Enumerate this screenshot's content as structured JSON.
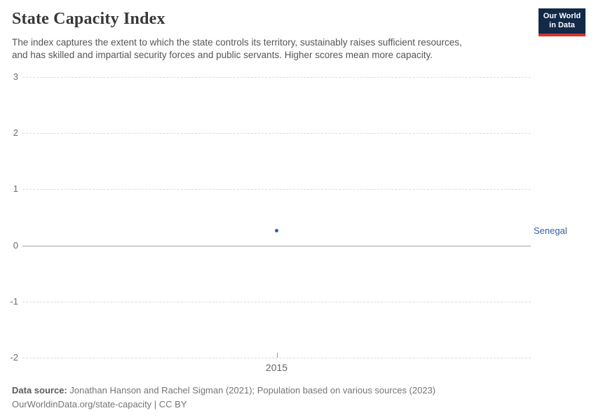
{
  "header": {
    "title": "State Capacity Index",
    "subtitle_line1": "The index captures the extent to which the state controls its territory, sustainably raises sufficient resources,",
    "subtitle_line2": "and has skilled and impartial security forces and public servants. Higher scores mean more capacity.",
    "logo": {
      "line1": "Our World",
      "line2": "in Data",
      "bg_color": "#122947",
      "accent_color": "#d0352f"
    }
  },
  "chart_data": {
    "type": "scatter",
    "title": "State Capacity Index",
    "x": [
      2015
    ],
    "series": [
      {
        "name": "Senegal",
        "values": [
          0.26
        ],
        "color": "#3360a9"
      }
    ],
    "xlabel": "",
    "ylabel": "",
    "ylim": [
      -2,
      3
    ],
    "yticks": [
      -2,
      -1,
      0,
      1,
      2,
      3
    ],
    "xticks": [
      "2015"
    ],
    "grid": "horizontal-dashed",
    "zero_line": true,
    "legend_position": "right-entity-label",
    "entity_label": "Senegal",
    "entity_label_color": "#3360a9",
    "gridline_color": "#dcdcdc",
    "zero_line_color": "#a3a3a3"
  },
  "footer": {
    "source_label": "Data source:",
    "source_text": " Jonathan Hanson and Rachel Sigman (2021); Population based on various sources (2023)",
    "url_line": "OurWorldinData.org/state-capacity | CC BY"
  }
}
